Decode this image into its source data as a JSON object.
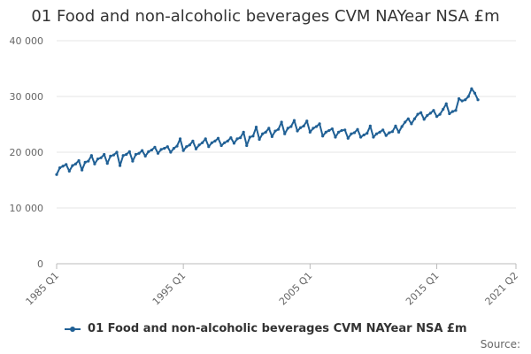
{
  "chart_data": {
    "type": "line",
    "title": "01 Food and non-alcoholic beverages CVM NAYear NSA £m",
    "xlabel": "",
    "ylabel": "",
    "ylim": [
      0,
      40000
    ],
    "yticks": [
      0,
      10000,
      20000,
      30000,
      40000
    ],
    "ytick_labels": [
      "0",
      "10 000",
      "20 000",
      "30 000",
      "40 000"
    ],
    "x_range": [
      1985.0,
      2021.25
    ],
    "xtick_labels": [
      "1985 Q1",
      "1995 Q1",
      "2005 Q1",
      "2015 Q1",
      "2021 Q2"
    ],
    "xtick_values": [
      1985.0,
      1995.0,
      2005.0,
      2015.0,
      2021.25
    ],
    "grid": true,
    "legend_position": "bottom",
    "series": [
      {
        "name": "01 Food and non-alcoholic beverages CVM NAYear NSA £m",
        "color": "#206095",
        "x_start": 1985.0,
        "x_step": 0.25,
        "values": [
          16000,
          17200,
          17500,
          17800,
          16600,
          17600,
          17900,
          18500,
          16800,
          18200,
          18400,
          19400,
          17900,
          18800,
          19000,
          19600,
          18000,
          19300,
          19500,
          20000,
          17600,
          19400,
          19600,
          20100,
          18400,
          19600,
          19800,
          20300,
          19300,
          20100,
          20400,
          20900,
          19800,
          20500,
          20700,
          21000,
          20000,
          20700,
          21100,
          22400,
          20300,
          21000,
          21300,
          22000,
          20600,
          21300,
          21700,
          22400,
          21000,
          21700,
          22000,
          22500,
          21200,
          21700,
          22000,
          22600,
          21600,
          22400,
          22600,
          23600,
          21200,
          22700,
          22900,
          24500,
          22300,
          23300,
          23600,
          24300,
          22800,
          23800,
          24100,
          25400,
          23300,
          24300,
          24600,
          25700,
          23800,
          24400,
          24700,
          25600,
          23600,
          24300,
          24600,
          25100,
          22900,
          23600,
          23900,
          24200,
          22700,
          23600,
          23900,
          24000,
          22500,
          23300,
          23500,
          24100,
          22700,
          23100,
          23400,
          24700,
          22700,
          23300,
          23600,
          24000,
          23000,
          23500,
          23700,
          24700,
          23600,
          24600,
          25400,
          26000,
          25100,
          26000,
          26800,
          27100,
          25900,
          26600,
          27000,
          27500,
          26400,
          26800,
          27700,
          28700,
          26900,
          27300,
          27500,
          29600,
          29200,
          29400,
          30000,
          31400,
          30600,
          29400
        ]
      }
    ]
  },
  "legend": {
    "label": "01 Food and non-alcoholic beverages CVM NAYear NSA £m"
  },
  "source": {
    "label": "Source:"
  }
}
